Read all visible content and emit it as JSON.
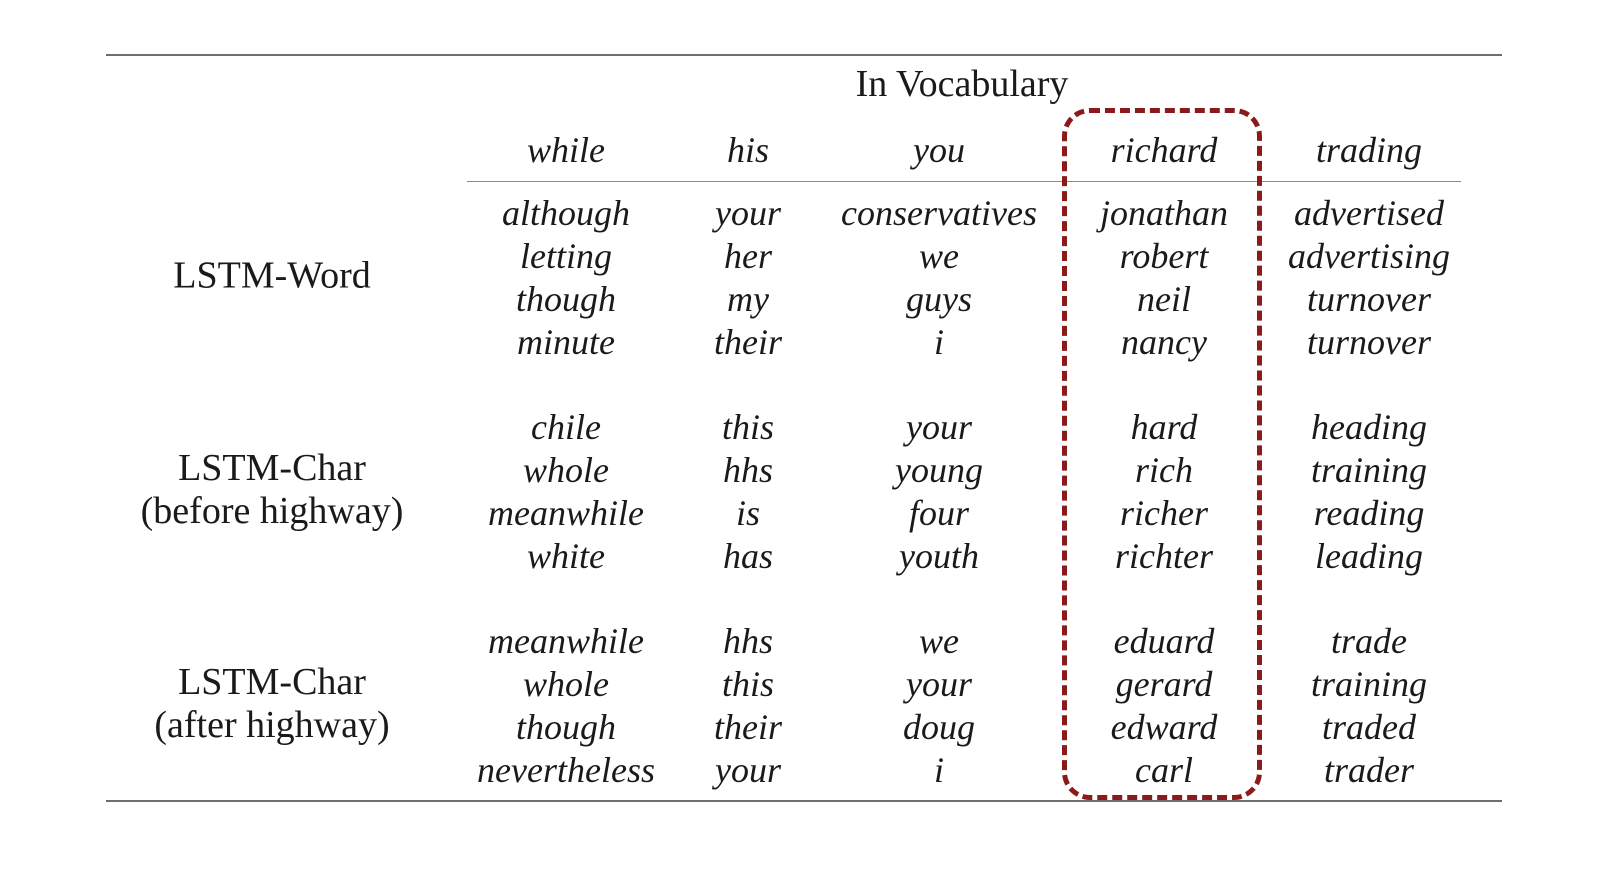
{
  "table": {
    "group_header": "In Vocabulary",
    "columns": [
      "while",
      "his",
      "you",
      "richard",
      "trading"
    ],
    "rows": [
      {
        "label": [
          "LSTM-Word"
        ],
        "cells": [
          [
            "although",
            "letting",
            "though",
            "minute"
          ],
          [
            "your",
            "her",
            "my",
            "their"
          ],
          [
            "conservatives",
            "we",
            "guys",
            "i"
          ],
          [
            "jonathan",
            "robert",
            "neil",
            "nancy"
          ],
          [
            "advertised",
            "advertising",
            "turnover",
            "turnover"
          ]
        ]
      },
      {
        "label": [
          "LSTM-Char",
          "(before highway)"
        ],
        "cells": [
          [
            "chile",
            "whole",
            "meanwhile",
            "white"
          ],
          [
            "this",
            "hhs",
            "is",
            "has"
          ],
          [
            "your",
            "young",
            "four",
            "youth"
          ],
          [
            "hard",
            "rich",
            "richer",
            "richter"
          ],
          [
            "heading",
            "training",
            "reading",
            "leading"
          ]
        ]
      },
      {
        "label": [
          "LSTM-Char",
          "(after highway)"
        ],
        "cells": [
          [
            "meanwhile",
            "whole",
            "though",
            "nevertheless"
          ],
          [
            "hhs",
            "this",
            "their",
            "your"
          ],
          [
            "we",
            "your",
            "doug",
            "i"
          ],
          [
            "eduard",
            "gerard",
            "edward",
            "carl"
          ],
          [
            "trade",
            "training",
            "traded",
            "trader"
          ]
        ]
      }
    ],
    "highlighted_column": "richard",
    "highlight_color": "#8b1a1a"
  }
}
